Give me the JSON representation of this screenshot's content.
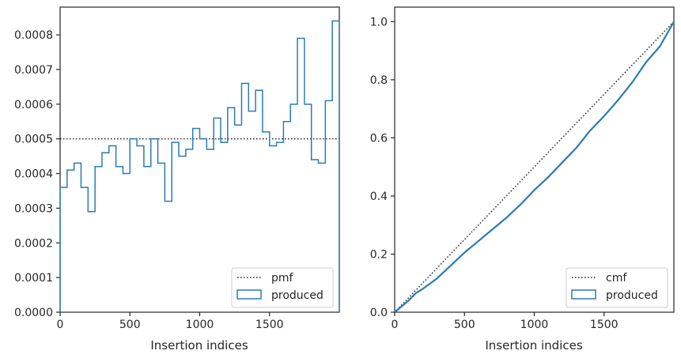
{
  "colors": {
    "series": "#2b7bb5",
    "reference": "#222222",
    "axes": "#262626"
  },
  "chart_data": [
    {
      "type": "histogram-step",
      "xlabel": "Insertion indices",
      "ylabel": "",
      "xlim": [
        0,
        2000
      ],
      "ylim": [
        0,
        0.00088
      ],
      "xticks": [
        0,
        500,
        1000,
        1500
      ],
      "xtick_labels": [
        "0",
        "500",
        "1000",
        "1500"
      ],
      "yticks": [
        0,
        0.0001,
        0.0002,
        0.0003,
        0.0004,
        0.0005,
        0.0006,
        0.0007,
        0.0008
      ],
      "ytick_labels": [
        "0.0000",
        "0.0001",
        "0.0002",
        "0.0003",
        "0.0004",
        "0.0005",
        "0.0006",
        "0.0007",
        "0.0008"
      ],
      "bin_width": 50,
      "series": [
        {
          "name": "produced",
          "style": "step",
          "values": [
            0.00036,
            0.00041,
            0.00043,
            0.00036,
            0.00029,
            0.00042,
            0.00046,
            0.00048,
            0.00042,
            0.0004,
            0.0005,
            0.00048,
            0.00042,
            0.0005,
            0.00043,
            0.00032,
            0.00049,
            0.00045,
            0.00047,
            0.00053,
            0.0005,
            0.00047,
            0.00056,
            0.00049,
            0.00059,
            0.00054,
            0.00066,
            0.00058,
            0.00064,
            0.00052,
            0.00048,
            0.00049,
            0.00055,
            0.0006,
            0.00079,
            0.0006,
            0.00044,
            0.00043,
            0.00061,
            0.00084
          ]
        },
        {
          "name": "pmf",
          "style": "dotted",
          "y": 0.0005
        }
      ],
      "legend": {
        "position": "lower-right",
        "entries": [
          "pmf",
          "produced"
        ]
      }
    },
    {
      "type": "line",
      "xlabel": "Insertion indices",
      "ylabel": "",
      "xlim": [
        0,
        2000
      ],
      "ylim": [
        0,
        1.05
      ],
      "xticks": [
        0,
        500,
        1000,
        1500
      ],
      "xtick_labels": [
        "0",
        "500",
        "1000",
        "1500"
      ],
      "yticks": [
        0,
        0.2,
        0.4,
        0.6,
        0.8,
        1.0
      ],
      "ytick_labels": [
        "0.0",
        "0.2",
        "0.4",
        "0.6",
        "0.8",
        "1.0"
      ],
      "series": [
        {
          "name": "produced",
          "style": "solid",
          "x": [
            0,
            50,
            100,
            150,
            200,
            300,
            400,
            500,
            600,
            700,
            800,
            900,
            1000,
            1100,
            1200,
            1300,
            1400,
            1500,
            1600,
            1700,
            1800,
            1900,
            2000
          ],
          "y": [
            0,
            0.02,
            0.04,
            0.065,
            0.08,
            0.115,
            0.16,
            0.205,
            0.245,
            0.285,
            0.325,
            0.37,
            0.42,
            0.465,
            0.515,
            0.565,
            0.625,
            0.675,
            0.73,
            0.79,
            0.86,
            0.915,
            1.0
          ]
        },
        {
          "name": "cmf",
          "style": "dotted",
          "x": [
            0,
            2000
          ],
          "y": [
            0,
            1.0
          ]
        }
      ],
      "legend": {
        "position": "lower-right",
        "entries": [
          "cmf",
          "produced"
        ]
      }
    }
  ]
}
